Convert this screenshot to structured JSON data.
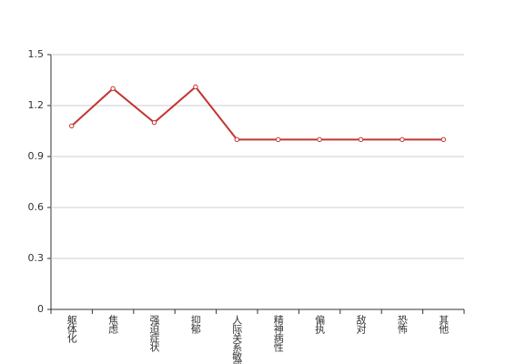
{
  "chart_data": {
    "type": "line",
    "categories": [
      "躯体化",
      "焦虑",
      "强迫症状",
      "抑郁",
      "人际关系敏感",
      "精神病性",
      "偏执",
      "敌对",
      "恐怖",
      "其他"
    ],
    "values": [
      1.08,
      1.3,
      1.1,
      1.31,
      1,
      1,
      1,
      1,
      1,
      1
    ],
    "color": "#c23531",
    "ylim": [
      0,
      1.5
    ],
    "yticks": [
      0,
      0.3,
      0.6,
      0.9,
      1.2,
      1.5
    ],
    "grid": true
  }
}
